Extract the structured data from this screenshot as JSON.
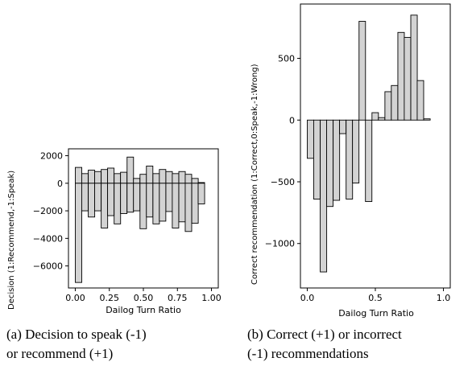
{
  "chart_data": [
    {
      "type": "bar",
      "caption_line1": "(a) Decision to speak (-1)",
      "caption_line2": "or recommend (+1)",
      "xlabel": "Dailog Turn Ratio",
      "ylabel": "Decision (1:Recommend,-1:Speak)",
      "xlim": [
        -0.05,
        1.05
      ],
      "ylim": [
        -7600,
        2500
      ],
      "xticks": [
        0.0,
        0.25,
        0.5,
        0.75,
        1.0
      ],
      "xtick_labels": [
        "0.00",
        "0.25",
        "0.50",
        "0.75",
        "1.00"
      ],
      "yticks": [
        2000,
        0,
        -2000,
        -4000,
        -6000
      ],
      "ytick_labels": [
        "2000",
        "0",
        "−2000",
        "−4000",
        "−6000"
      ],
      "bar_width": 0.0475,
      "series": [
        {
          "values_pos": [
            {
              "x": 0.024,
              "y": 1150
            },
            {
              "x": 0.071,
              "y": 700
            },
            {
              "x": 0.119,
              "y": 950
            },
            {
              "x": 0.166,
              "y": 850
            },
            {
              "x": 0.214,
              "y": 1000
            },
            {
              "x": 0.261,
              "y": 1100
            },
            {
              "x": 0.309,
              "y": 700
            },
            {
              "x": 0.356,
              "y": 800
            },
            {
              "x": 0.404,
              "y": 1900
            },
            {
              "x": 0.451,
              "y": 350
            },
            {
              "x": 0.499,
              "y": 650
            },
            {
              "x": 0.546,
              "y": 1250
            },
            {
              "x": 0.594,
              "y": 700
            },
            {
              "x": 0.641,
              "y": 1000
            },
            {
              "x": 0.689,
              "y": 850
            },
            {
              "x": 0.736,
              "y": 700
            },
            {
              "x": 0.784,
              "y": 850
            },
            {
              "x": 0.831,
              "y": 650
            },
            {
              "x": 0.879,
              "y": 350
            },
            {
              "x": 0.926,
              "y": 50
            }
          ],
          "values_neg": [
            {
              "x": 0.024,
              "y": -7200
            },
            {
              "x": 0.071,
              "y": -2000
            },
            {
              "x": 0.119,
              "y": -2450
            },
            {
              "x": 0.166,
              "y": -2000
            },
            {
              "x": 0.214,
              "y": -3250
            },
            {
              "x": 0.261,
              "y": -2350
            },
            {
              "x": 0.309,
              "y": -2950
            },
            {
              "x": 0.356,
              "y": -2200
            },
            {
              "x": 0.404,
              "y": -2100
            },
            {
              "x": 0.451,
              "y": -2000
            },
            {
              "x": 0.499,
              "y": -3300
            },
            {
              "x": 0.546,
              "y": -2450
            },
            {
              "x": 0.594,
              "y": -2950
            },
            {
              "x": 0.641,
              "y": -2750
            },
            {
              "x": 0.689,
              "y": -2050
            },
            {
              "x": 0.736,
              "y": -3250
            },
            {
              "x": 0.784,
              "y": -2800
            },
            {
              "x": 0.831,
              "y": -3500
            },
            {
              "x": 0.879,
              "y": -2900
            },
            {
              "x": 0.926,
              "y": -1500
            }
          ]
        }
      ],
      "colors": {
        "bar_fill": "#d3d3d3",
        "bar_edge": "#000000"
      }
    },
    {
      "type": "bar",
      "caption_line1": "(b) Correct (+1) or incorrect",
      "caption_line2": "(-1) recommendations",
      "xlabel": "Dailog Turn Ratio",
      "ylabel": "Correct recommendation (1:Correct,0:Speak,-1:Wrong)",
      "xlim": [
        -0.05,
        1.05
      ],
      "ylim": [
        -1360,
        940
      ],
      "xticks": [
        0.0,
        0.5,
        1.0
      ],
      "xtick_labels": [
        "0.0",
        "0.5",
        "1.0"
      ],
      "yticks": [
        500,
        0,
        -500,
        -1000
      ],
      "ytick_labels": [
        "500",
        "0",
        "−500",
        "−1000"
      ],
      "bar_width": 0.0475,
      "series": [
        {
          "values": [
            {
              "x": 0.024,
              "y": -310
            },
            {
              "x": 0.071,
              "y": -640
            },
            {
              "x": 0.119,
              "y": -1230
            },
            {
              "x": 0.166,
              "y": -700
            },
            {
              "x": 0.214,
              "y": -650
            },
            {
              "x": 0.261,
              "y": -110
            },
            {
              "x": 0.309,
              "y": -640
            },
            {
              "x": 0.356,
              "y": -510
            },
            {
              "x": 0.404,
              "y": 800
            },
            {
              "x": 0.451,
              "y": -660
            },
            {
              "x": 0.499,
              "y": 60
            },
            {
              "x": 0.546,
              "y": 20
            },
            {
              "x": 0.594,
              "y": 230
            },
            {
              "x": 0.641,
              "y": 280
            },
            {
              "x": 0.689,
              "y": 710
            },
            {
              "x": 0.736,
              "y": 670
            },
            {
              "x": 0.784,
              "y": 850
            },
            {
              "x": 0.831,
              "y": 320
            },
            {
              "x": 0.879,
              "y": 10
            }
          ]
        }
      ],
      "colors": {
        "bar_fill": "#d3d3d3",
        "bar_edge": "#000000"
      }
    }
  ]
}
